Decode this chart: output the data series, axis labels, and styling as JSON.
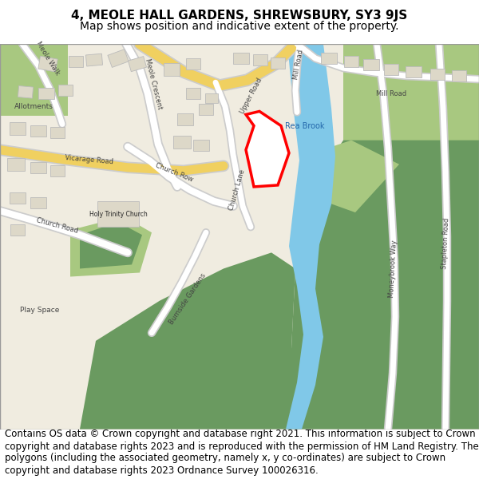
{
  "title_line1": "4, MEOLE HALL GARDENS, SHREWSBURY, SY3 9JS",
  "title_line2": "Map shows position and indicative extent of the property.",
  "footer_text": "Contains OS data © Crown copyright and database right 2021. This information is subject to Crown copyright and database rights 2023 and is reproduced with the permission of HM Land Registry. The polygons (including the associated geometry, namely x, y co-ordinates) are subject to Crown copyright and database rights 2023 Ordnance Survey 100026316.",
  "title_fontsize": 11,
  "subtitle_fontsize": 10,
  "footer_fontsize": 8.5,
  "fig_width": 6.0,
  "fig_height": 6.25,
  "background_color": "#ffffff",
  "map_bg_color": "#f0ece0",
  "road_color_yellow": "#f0d060",
  "road_color_white": "#ffffff",
  "green_light": "#a8c880",
  "green_dark": "#6a9a60",
  "water_color": "#80c8e8",
  "plot_outline_color": "#ff0000",
  "plot_fill_color": "#ffffff",
  "title_color": "#000000",
  "footer_color": "#000000",
  "road_outline": "#cccccc",
  "building_color": "#ddd8c8",
  "building_outline": "#bbbbbb"
}
